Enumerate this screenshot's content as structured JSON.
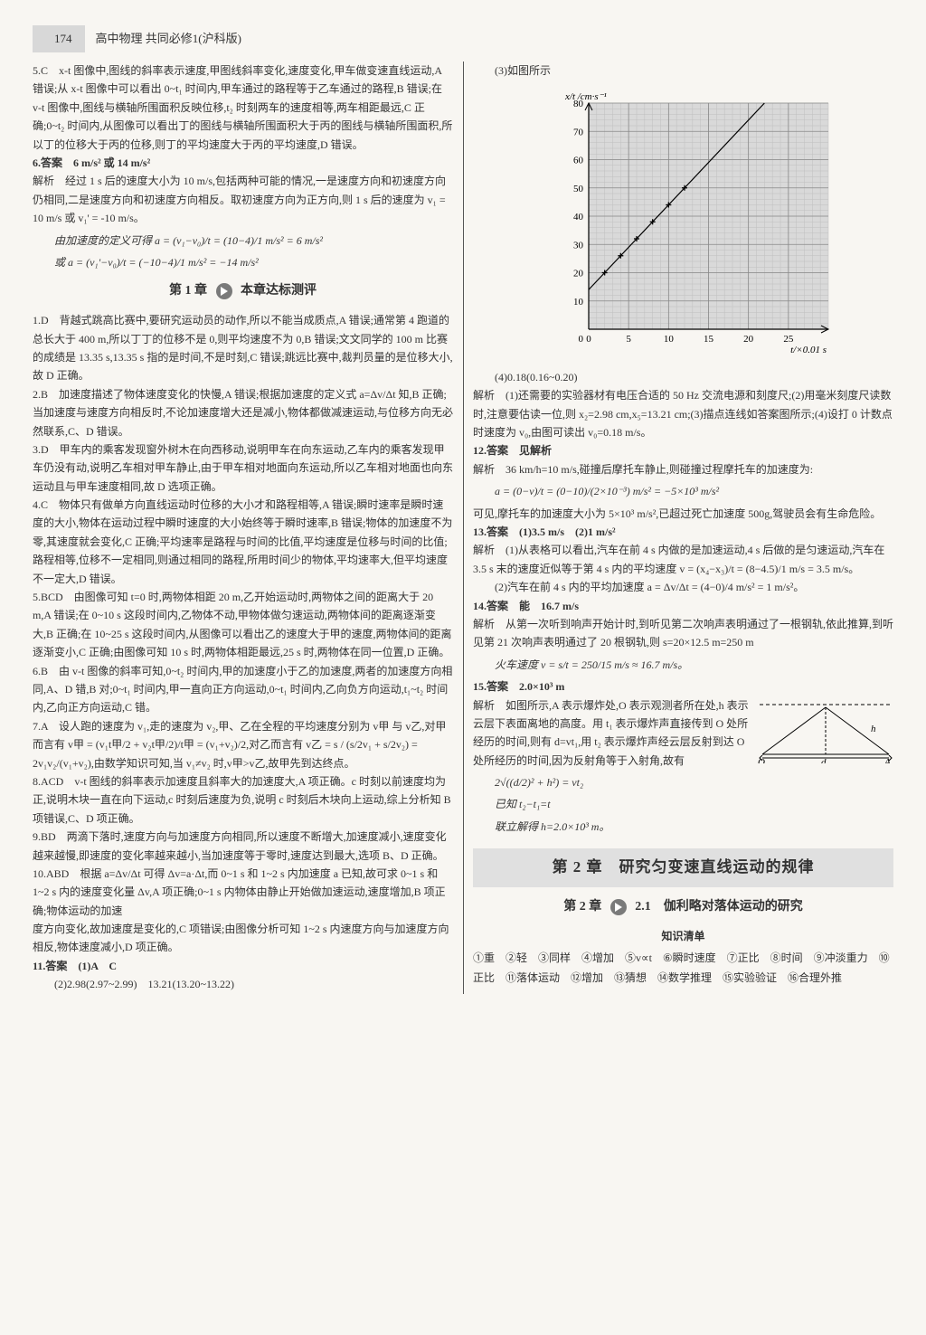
{
  "header": {
    "page_number": "174",
    "book_title": "高中物理 共同必修1(沪科版)"
  },
  "col_left": {
    "q5": "5.C　x-t 图像中,图线的斜率表示速度,甲图线斜率变化,速度变化,甲车做变速直线运动,A 错误;从 x-t 图像中可以看出 0~t₁ 时间内,甲车通过的路程等于乙车通过的路程,B 错误;在 v-t 图像中,图线与横轴所围面积反映位移,t₂ 时刻两车的速度相等,两车相距最远,C 正确;0~t₂ 时间内,从图像可以看出丁的图线与横轴所围面积大于丙的图线与横轴所围面积,所以丁的位移大于丙的位移,则丁的平均速度大于丙的平均速度,D 错误。",
    "q6_ans": "6.答案　6 m/s² 或 14 m/s²",
    "q6_exp": "解析　经过 1 s 后的速度大小为 10 m/s,包括两种可能的情况,一是速度方向和初速度方向仍相同,二是速度方向和初速度方向相反。取初速度方向为正方向,则 1 s 后的速度为 v₁ = 10 m/s 或 v₁' = -10 m/s。",
    "q6_f1": "由加速度的定义可得 a = (v₁−v₀)/t = (10−4)/1 m/s² = 6 m/s²",
    "q6_f2": "或 a = (v₁'−v₀)/t = (−10−4)/1 m/s² = −14 m/s²",
    "sec1_title": "第 1 章　➔　本章达标测评",
    "q1d": "1.D　背越式跳高比赛中,要研究运动员的动作,所以不能当成质点,A 错误;通常第 4 跑道的总长大于 400 m,所以丁丁的位移不是 0,则平均速度不为 0,B 错误;文文同学的 100 m 比赛的成绩是 13.35 s,13.35 s 指的是时间,不是时刻,C 错误;跳远比赛中,裁判员量的是位移大小,故 D 正确。",
    "q2b": "2.B　加速度描述了物体速度变化的快慢,A 错误;根据加速度的定义式 a=Δv/Δt 知,B 正确;当加速度与速度方向相反时,不论加速度增大还是减小,物体都做减速运动,与位移方向无必然联系,C、D 错误。",
    "q3d": "3.D　甲车内的乘客发现窗外树木在向西移动,说明甲车在向东运动,乙车内的乘客发现甲车仍没有动,说明乙车相对甲车静止,由于甲车相对地面向东运动,所以乙车相对地面也向东运动且与甲车速度相同,故 D 选项正确。",
    "q4c": "4.C　物体只有做单方向直线运动时位移的大小才和路程相等,A 错误;瞬时速率是瞬时速度的大小,物体在运动过程中瞬时速度的大小始终等于瞬时速率,B 错误;物体的加速度不为零,其速度就会变化,C 正确;平均速率是路程与时间的比值,平均速度是位移与时间的比值;路程相等,位移不一定相同,则通过相同的路程,所用时间少的物体,平均速率大,但平均速度不一定大,D 错误。",
    "q5bcd": "5.BCD　由图像可知 t=0 时,两物体相距 20 m,乙开始运动时,两物体之间的距离大于 20 m,A 错误;在 0~10 s 这段时间内,乙物体不动,甲物体做匀速运动,两物体间的距离逐渐变大,B 正确;在 10~25 s 这段时间内,从图像可以看出乙的速度大于甲的速度,两物体间的距离逐渐变小,C 正确;由图像可知 10 s 时,两物体相距最远,25 s 时,两物体在同一位置,D 正确。",
    "q6b": "6.B　由 v-t 图像的斜率可知,0~t₂ 时间内,甲的加速度小于乙的加速度,两者的加速度方向相同,A、D 错,B 对;0~t₁ 时间内,甲一直向正方向运动,0~t₁ 时间内,乙向负方向运动,t₁~t₂ 时间内,乙向正方向运动,C 错。",
    "q7a": "7.A　设人跑的速度为 v₁,走的速度为 v₂,甲、乙在全程的平均速度分别为 v甲 与 v乙,对甲而言有 v甲 = (v₁t甲/2 + v₂t甲/2)/t甲 = (v₁+v₂)/2,对乙而言有 v乙 = s / (s/2v₁ + s/2v₂) = 2v₁v₂/(v₁+v₂),由数学知识可知,当 v₁≠v₂ 时,v甲>v乙,故甲先到达终点。",
    "q8acd": "8.ACD　v-t 图线的斜率表示加速度且斜率大的加速度大,A 项正确。c 时刻以前速度均为正,说明木块一直在向下运动,c 时刻后速度为负,说明 c 时刻后木块向上运动,综上分析知 B 项错误,C、D 项正确。",
    "q9bd": "9.BD　两滴下落时,速度方向与加速度方向相同,所以速度不断增大,加速度减小,速度变化越来越慢,即速度的变化率越来越小,当加速度等于零时,速度达到最大,选项 B、D 正确。",
    "q10abd": "10.ABD　根据 a=Δv/Δt 可得 Δv=a·Δt,而 0~1 s 和 1~2 s 内加速度 a 已知,故可求 0~1 s 和 1~2 s 内的速度变化量 Δv,A 项正确;0~1 s 内物体由静止开始做加速运动,速度增加,B 项正确;物体运动的加速"
  },
  "col_right": {
    "q10cont": "度方向变化,故加速度是变化的,C 项错误;由图像分析可知 1~2 s 内速度方向与加速度方向相反,物体速度减小,D 项正确。",
    "q11_ans": "11.答案　(1)A　C",
    "q11_2": "(2)2.98(2.97~2.99)　13.21(13.20~13.22)",
    "q11_3": "(3)如图所示",
    "chart": {
      "type": "line",
      "x_label": "t/×0.01 s",
      "y_label": "x/t /cm·s⁻¹",
      "x_range": [
        0,
        30
      ],
      "y_range": [
        0,
        80
      ],
      "x_ticks": [
        0,
        5,
        10,
        15,
        20,
        25
      ],
      "y_ticks": [
        0,
        10,
        20,
        30,
        40,
        50,
        60,
        70,
        80
      ],
      "points_x": [
        2,
        4,
        6,
        8,
        10,
        12
      ],
      "points_y": [
        20,
        26,
        32,
        38,
        44,
        50
      ],
      "line_color": "#000000",
      "grid_color": "#bfbfbf",
      "bg_color": "#d9d9d9",
      "marker": "plus",
      "marker_size": 6,
      "line_width": 1.2
    },
    "q11_4": "(4)0.18(0.16~0.20)",
    "q11_exp": "解析　(1)还需要的实验器材有电压合适的 50 Hz 交流电源和刻度尺;(2)用毫米刻度尺读数时,注意要估读一位,则 x₂=2.98 cm,x₅=13.21 cm;(3)描点连线如答案图所示;(4)设打 0 计数点时速度为 v₀,由图可读出 v₀=0.18 m/s。",
    "q12_ans": "12.答案　见解析",
    "q12_exp1": "解析　36 km/h=10 m/s,碰撞后摩托车静止,则碰撞过程摩托车的加速度为:",
    "q12_f": "a = (0−v)/t = (0−10)/(2×10⁻³) m/s² = −5×10³ m/s²",
    "q12_exp2": "可见,摩托车的加速度大小为 5×10³ m/s²,已超过死亡加速度 500g,驾驶员会有生命危险。",
    "q13_ans": "13.答案　(1)3.5 m/s　(2)1 m/s²",
    "q13_exp1": "解析　(1)从表格可以看出,汽车在前 4 s 内做的是加速运动,4 s 后做的是匀速运动,汽车在 3.5 s 末的速度近似等于第 4 s 内的平均速度 v = (x₄−x₃)/t = (8−4.5)/1 m/s = 3.5 m/s。",
    "q13_exp2": "(2)汽车在前 4 s 内的平均加速度 a = Δv/Δt = (4−0)/4 m/s² = 1 m/s²。",
    "q14_ans": "14.答案　能　16.7 m/s",
    "q14_exp1": "解析　从第一次听到响声开始计时,到听见第二次响声表明通过了一根钢轨,依此推算,到听见第 21 次响声表明通过了 20 根钢轨,则 s=20×12.5 m=250 m",
    "q14_f": "火车速度 v = s/t = 250/15 m/s ≈ 16.7 m/s。",
    "q15_ans": "15.答案　2.0×10³ m",
    "q15_exp": "解析　如图所示,A 表示爆炸处,O 表示观测者所在处,h 表示云层下表面离地的高度。用 t₁ 表示爆炸声直接传到 O 处所经历的时间,则有 d=vt₁,用 t₂ 表示爆炸声经云层反射到达 O 处所经历的时间,因为反射角等于入射角,故有",
    "q15_f1": "2√((d/2)² + h²) = vt₂",
    "q15_f2": "已知 t₂−t₁=t",
    "q15_f3": "联立解得 h=2.0×10³ m。",
    "diagram": {
      "labels": {
        "O": "O",
        "A": "A",
        "h": "h",
        "d": "d"
      },
      "stroke": "#000000"
    },
    "chapter2_banner": "第 2 章　研究匀变速直线运动的规律",
    "sec2_title": "第 2 章　➔　2.1　伽利略对落体运动的研究",
    "know_title": "知识清单",
    "know_items": "①重　②轻　③同样　④增加　⑤v∝t　⑥瞬时速度　⑦正比　⑧时间　⑨冲淡重力　⑩正比　⑪落体运动　⑫增加　⑬猜想　⑭数学推理　⑮实验验证　⑯合理外推"
  }
}
